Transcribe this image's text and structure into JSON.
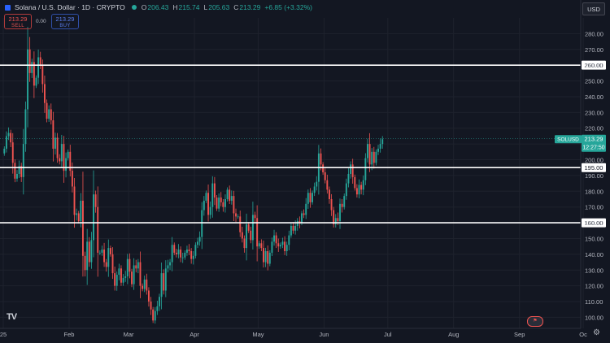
{
  "header": {
    "title": "Solana / U.S. Dollar · 1D · CRYPTO",
    "o_label": "O",
    "o": "206.43",
    "h_label": "H",
    "h": "215.74",
    "l_label": "L",
    "l": "205.63",
    "c_label": "C",
    "c": "213.29",
    "change": "+6.85 (+3.32%)"
  },
  "trade": {
    "sell_price": "213.29",
    "sell_label": "SELL",
    "spread": "0.00",
    "buy_price": "213.29",
    "buy_label": "BUY"
  },
  "currency": "USD",
  "logo": "TV",
  "colors": {
    "background": "#131722",
    "up": "#26a69a",
    "down": "#ef5350",
    "hline": "#ffffff",
    "axis_text": "#b2b5be"
  },
  "chart_data": {
    "type": "candlestick",
    "symbol_tag": "SOLUSD",
    "last_price": "213.29",
    "countdown": "12:27:50",
    "y_ticks": [
      100,
      110,
      120,
      130,
      140,
      150,
      160,
      170,
      180,
      190,
      200,
      210,
      220,
      230,
      240,
      250,
      260,
      270,
      280
    ],
    "ylim": [
      93,
      290
    ],
    "x_tick_labels": [
      "25",
      "Feb",
      "Mar",
      "Apr",
      "May",
      "Jun",
      "Jul",
      "Aug",
      "Sep",
      "Oc"
    ],
    "x_tick_days": [
      0,
      31,
      59,
      90,
      120,
      151,
      181,
      212,
      243,
      273
    ],
    "horizontal_levels": [
      260,
      195,
      160
    ],
    "horizontal_level_labels": [
      "260.00",
      "195.00",
      "160.00"
    ],
    "closes": [
      207,
      215,
      217,
      211,
      198,
      188,
      191,
      196,
      189,
      210,
      232,
      270,
      255,
      262,
      247,
      252,
      265,
      260,
      248,
      236,
      226,
      232,
      225,
      207,
      214,
      201,
      199,
      210,
      193,
      201,
      205,
      193,
      183,
      165,
      166,
      161,
      174,
      139,
      130,
      148,
      135,
      149,
      178,
      170,
      141,
      141,
      143,
      135,
      132,
      144,
      140,
      128,
      120,
      127,
      131,
      122,
      125,
      126,
      137,
      129,
      121,
      133,
      131,
      135,
      120,
      118,
      124,
      117,
      110,
      105,
      98,
      104,
      107,
      113,
      128,
      117,
      131,
      133,
      135,
      146,
      141,
      140,
      143,
      138,
      138,
      141,
      143,
      142,
      137,
      139,
      146,
      148,
      151,
      168,
      174,
      179,
      165,
      170,
      185,
      176,
      169,
      176,
      173,
      170,
      175,
      181,
      174,
      177,
      166,
      164,
      164,
      154,
      150,
      144,
      159,
      155,
      149,
      165,
      163,
      145,
      147,
      144,
      135,
      142,
      134,
      141,
      148,
      152,
      147,
      145,
      146,
      148,
      142,
      146,
      152,
      158,
      155,
      158,
      161,
      160,
      166,
      165,
      172,
      179,
      173,
      179,
      183,
      186,
      204,
      197,
      192,
      187,
      181,
      175,
      168,
      159,
      163,
      161,
      172,
      170,
      177,
      185,
      191,
      197,
      189,
      182,
      178,
      184,
      181,
      187,
      201,
      210,
      197,
      205,
      198,
      205,
      207,
      210,
      213
    ]
  }
}
